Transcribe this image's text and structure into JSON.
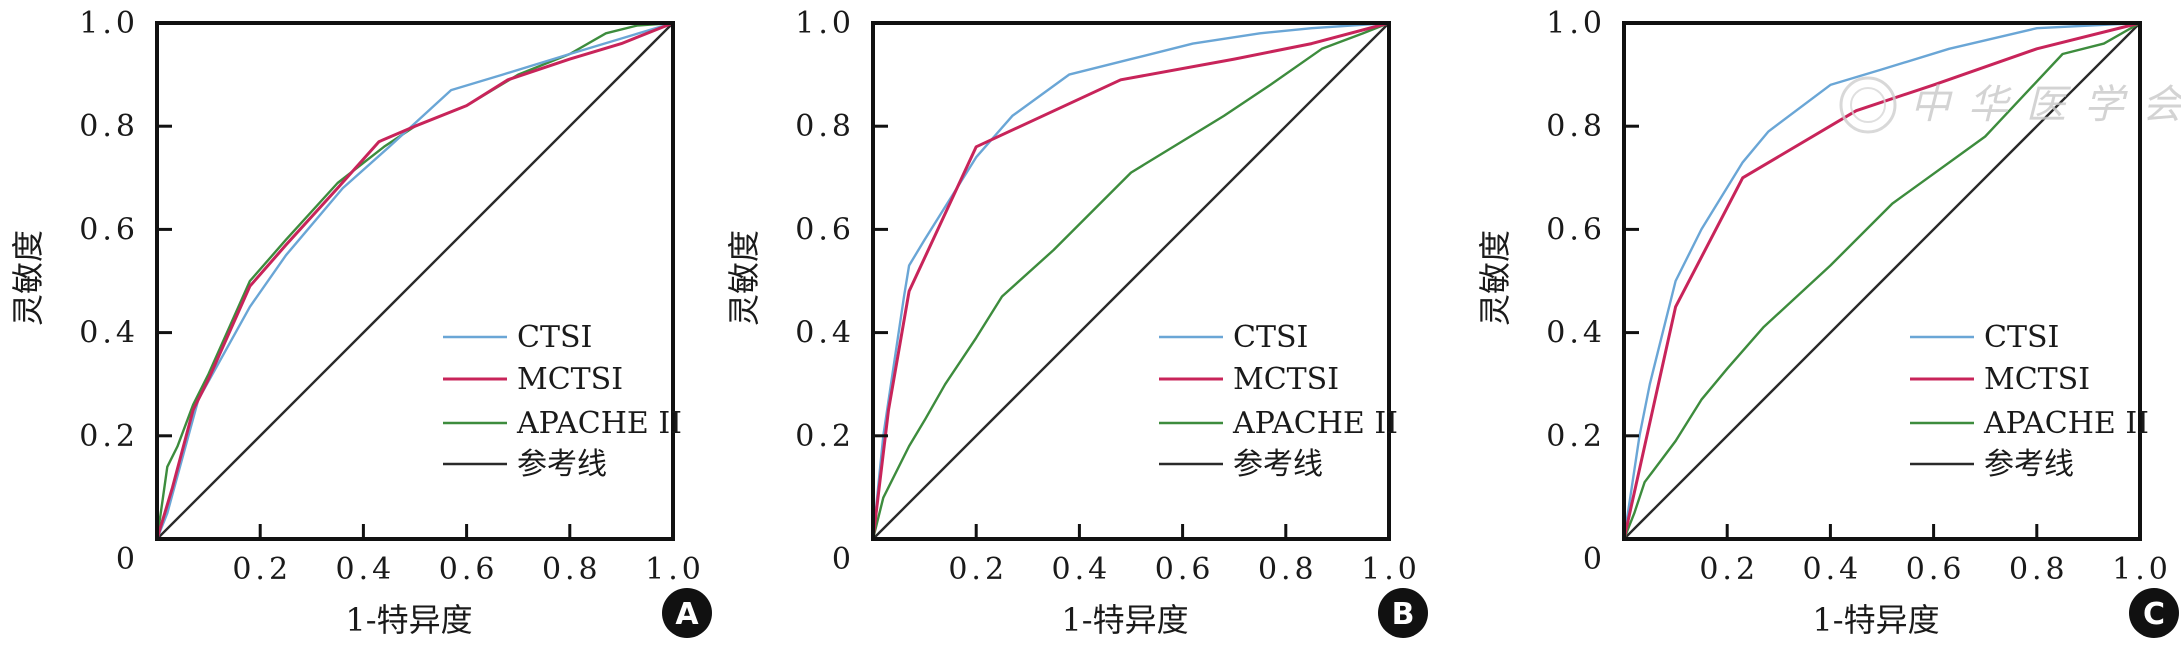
{
  "watermark": "中华医学会",
  "colors": {
    "CTSI": "#6aa6d6",
    "MCTSI": "#c8245a",
    "APACHE II": "#3d8c3d",
    "参考线": "#2a2a2a"
  },
  "chart_data": [
    {
      "type": "line",
      "panel_label": "A",
      "xlabel": "1-特异度",
      "ylabel": "灵敏度",
      "xlim": [
        0,
        1
      ],
      "ylim": [
        0,
        1
      ],
      "x_ticks": [
        "0.2",
        "0.4",
        "0.6",
        "0.8",
        "1.0"
      ],
      "y_ticks": [
        "0",
        "0.2",
        "0.4",
        "0.6",
        "0.8",
        "1.0"
      ],
      "grid": false,
      "legend": "bottom-right",
      "series": [
        {
          "name": "CTSI",
          "x": [
            0,
            0.02,
            0.08,
            0.18,
            0.25,
            0.36,
            0.45,
            0.57,
            0.67,
            0.8,
            0.9,
            1
          ],
          "y": [
            0,
            0.05,
            0.27,
            0.45,
            0.55,
            0.68,
            0.76,
            0.87,
            0.9,
            0.94,
            0.97,
            1
          ]
        },
        {
          "name": "MCTSI",
          "x": [
            0,
            0.03,
            0.07,
            0.1,
            0.18,
            0.25,
            0.35,
            0.43,
            0.5,
            0.6,
            0.68,
            0.8,
            0.9,
            1
          ],
          "y": [
            0,
            0.1,
            0.25,
            0.31,
            0.49,
            0.57,
            0.68,
            0.77,
            0.8,
            0.84,
            0.89,
            0.93,
            0.96,
            1
          ]
        },
        {
          "name": "APACHE II",
          "x": [
            0,
            0.01,
            0.02,
            0.04,
            0.07,
            0.1,
            0.18,
            0.25,
            0.35,
            0.44,
            0.5,
            0.6,
            0.7,
            0.8,
            0.87,
            0.93,
            1
          ],
          "y": [
            0,
            0.07,
            0.14,
            0.18,
            0.26,
            0.32,
            0.5,
            0.58,
            0.69,
            0.76,
            0.8,
            0.84,
            0.9,
            0.94,
            0.98,
            0.995,
            1
          ]
        },
        {
          "name": "参考线",
          "x": [
            0,
            1
          ],
          "y": [
            0,
            1
          ]
        }
      ]
    },
    {
      "type": "line",
      "panel_label": "B",
      "xlabel": "1-特异度",
      "ylabel": "灵敏度",
      "xlim": [
        0,
        1
      ],
      "ylim": [
        0,
        1
      ],
      "x_ticks": [
        "0.2",
        "0.4",
        "0.6",
        "0.8",
        "1.0"
      ],
      "y_ticks": [
        "0",
        "0.2",
        "0.4",
        "0.6",
        "0.8",
        "1.0"
      ],
      "grid": false,
      "legend": "bottom-right",
      "series": [
        {
          "name": "CTSI",
          "x": [
            0,
            0.02,
            0.06,
            0.07,
            0.1,
            0.2,
            0.27,
            0.38,
            0.5,
            0.62,
            0.75,
            0.85,
            1
          ],
          "y": [
            0,
            0.2,
            0.47,
            0.53,
            0.58,
            0.74,
            0.82,
            0.9,
            0.93,
            0.96,
            0.98,
            0.99,
            1
          ]
        },
        {
          "name": "MCTSI",
          "x": [
            0,
            0.03,
            0.07,
            0.2,
            0.48,
            0.7,
            0.85,
            1
          ],
          "y": [
            0,
            0.25,
            0.48,
            0.76,
            0.89,
            0.93,
            0.96,
            1
          ]
        },
        {
          "name": "APACHE II",
          "x": [
            0,
            0.02,
            0.07,
            0.1,
            0.14,
            0.2,
            0.25,
            0.35,
            0.5,
            0.68,
            0.77,
            0.87,
            0.95,
            1
          ],
          "y": [
            0,
            0.08,
            0.18,
            0.23,
            0.3,
            0.39,
            0.47,
            0.56,
            0.71,
            0.82,
            0.88,
            0.95,
            0.98,
            1
          ]
        },
        {
          "name": "参考线",
          "x": [
            0,
            1
          ],
          "y": [
            0,
            1
          ]
        }
      ]
    },
    {
      "type": "line",
      "panel_label": "C",
      "xlabel": "1-特异度",
      "ylabel": "灵敏度",
      "xlim": [
        0,
        1
      ],
      "ylim": [
        0,
        1
      ],
      "x_ticks": [
        "0.2",
        "0.4",
        "0.6",
        "0.8",
        "1.0"
      ],
      "y_ticks": [
        "0",
        "0.2",
        "0.4",
        "0.6",
        "0.8",
        "1.0"
      ],
      "grid": false,
      "legend": "bottom-right",
      "series": [
        {
          "name": "CTSI",
          "x": [
            0,
            0.03,
            0.05,
            0.07,
            0.1,
            0.15,
            0.23,
            0.28,
            0.4,
            0.5,
            0.63,
            0.8,
            1
          ],
          "y": [
            0,
            0.2,
            0.3,
            0.38,
            0.5,
            0.6,
            0.73,
            0.79,
            0.88,
            0.91,
            0.95,
            0.99,
            1
          ]
        },
        {
          "name": "MCTSI",
          "x": [
            0,
            0.1,
            0.23,
            0.45,
            0.6,
            0.8,
            1
          ],
          "y": [
            0,
            0.45,
            0.7,
            0.83,
            0.88,
            0.95,
            1
          ]
        },
        {
          "name": "APACHE II",
          "x": [
            0,
            0.02,
            0.04,
            0.07,
            0.1,
            0.15,
            0.2,
            0.27,
            0.4,
            0.52,
            0.7,
            0.85,
            0.93,
            1
          ],
          "y": [
            0,
            0.05,
            0.11,
            0.15,
            0.19,
            0.27,
            0.33,
            0.41,
            0.53,
            0.65,
            0.78,
            0.94,
            0.96,
            1
          ]
        },
        {
          "name": "参考线",
          "x": [
            0,
            1
          ],
          "y": [
            0,
            1
          ]
        }
      ]
    }
  ]
}
